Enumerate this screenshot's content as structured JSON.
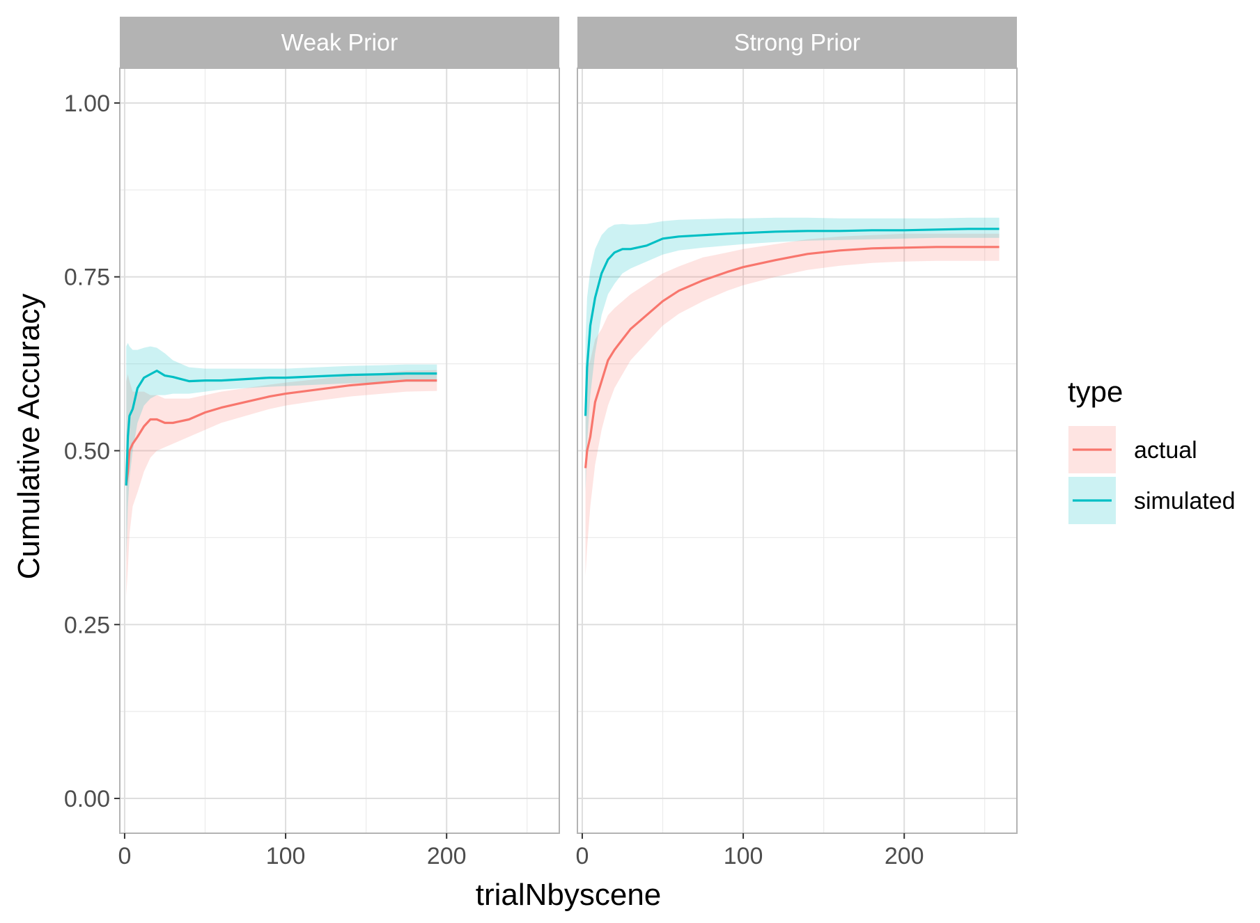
{
  "chart_data": {
    "type": "line",
    "xlabel": "trialNbyscene",
    "ylabel": "Cumulative Accuracy",
    "xlim": [
      -3,
      270
    ],
    "ylim": [
      -0.05,
      1.05
    ],
    "x_ticks": [
      0,
      100,
      200
    ],
    "x_tick_labels": [
      "0",
      "100",
      "200"
    ],
    "x_minor_ticks": [
      50,
      150,
      250
    ],
    "y_ticks": [
      0,
      0.25,
      0.5,
      0.75,
      1.0
    ],
    "y_tick_labels": [
      "0.00",
      "0.25",
      "0.50",
      "0.75",
      "1.00"
    ],
    "y_minor_ticks": [
      0.125,
      0.375,
      0.625,
      0.875
    ],
    "grid": true,
    "legend": {
      "title": "type",
      "position": "right",
      "entries": [
        {
          "label": "actual",
          "color": "#F8766D"
        },
        {
          "label": "simulated",
          "color": "#00BFC4"
        }
      ]
    },
    "colors": {
      "actual": "#F8766D",
      "simulated": "#00BFC4",
      "strip": "#b3b3b3",
      "strip_text": "#ffffff"
    },
    "facets": [
      {
        "title": "Weak Prior",
        "series": [
          {
            "name": "actual",
            "x": [
              1,
              2,
              3,
              5,
              8,
              12,
              16,
              20,
              25,
              30,
              40,
              50,
              60,
              75,
              90,
              100,
              120,
              140,
              160,
              175,
              194
            ],
            "y": [
              0.45,
              0.47,
              0.5,
              0.51,
              0.52,
              0.535,
              0.545,
              0.545,
              0.54,
              0.54,
              0.545,
              0.555,
              0.562,
              0.57,
              0.578,
              0.582,
              0.588,
              0.594,
              0.598,
              0.601,
              0.601
            ],
            "lower": [
              0.29,
              0.33,
              0.38,
              0.42,
              0.44,
              0.47,
              0.49,
              0.5,
              0.505,
              0.51,
              0.52,
              0.53,
              0.54,
              0.55,
              0.56,
              0.565,
              0.572,
              0.578,
              0.582,
              0.585,
              0.586
            ],
            "upper": [
              0.6,
              0.61,
              0.6,
              0.585,
              0.585,
              0.585,
              0.58,
              0.58,
              0.575,
              0.575,
              0.575,
              0.58,
              0.585,
              0.59,
              0.595,
              0.598,
              0.603,
              0.608,
              0.612,
              0.615,
              0.616
            ]
          },
          {
            "name": "simulated",
            "x": [
              1,
              2,
              3,
              5,
              8,
              12,
              16,
              20,
              25,
              30,
              40,
              50,
              60,
              75,
              90,
              100,
              120,
              140,
              160,
              175,
              194
            ],
            "y": [
              0.45,
              0.52,
              0.55,
              0.56,
              0.59,
              0.605,
              0.61,
              0.615,
              0.608,
              0.606,
              0.6,
              0.601,
              0.601,
              0.603,
              0.605,
              0.605,
              0.607,
              0.609,
              0.61,
              0.611,
              0.611
            ],
            "lower": [
              0.34,
              0.42,
              0.46,
              0.5,
              0.54,
              0.565,
              0.575,
              0.58,
              0.58,
              0.582,
              0.582,
              0.585,
              0.588,
              0.59,
              0.592,
              0.593,
              0.595,
              0.597,
              0.598,
              0.599,
              0.599
            ],
            "upper": [
              0.65,
              0.655,
              0.65,
              0.645,
              0.645,
              0.648,
              0.65,
              0.648,
              0.64,
              0.63,
              0.62,
              0.618,
              0.618,
              0.618,
              0.618,
              0.618,
              0.62,
              0.622,
              0.623,
              0.624,
              0.624
            ]
          }
        ]
      },
      {
        "title": "Strong Prior",
        "series": [
          {
            "name": "actual",
            "x": [
              2,
              3,
              5,
              8,
              12,
              16,
              20,
              25,
              30,
              40,
              50,
              60,
              75,
              90,
              100,
              120,
              140,
              160,
              180,
              200,
              220,
              240,
              259
            ],
            "y": [
              0.475,
              0.5,
              0.52,
              0.57,
              0.6,
              0.63,
              0.645,
              0.66,
              0.675,
              0.695,
              0.715,
              0.73,
              0.745,
              0.757,
              0.764,
              0.774,
              0.783,
              0.788,
              0.791,
              0.792,
              0.793,
              0.793,
              0.793
            ],
            "lower": [
              0.32,
              0.36,
              0.42,
              0.48,
              0.53,
              0.565,
              0.59,
              0.61,
              0.63,
              0.655,
              0.68,
              0.697,
              0.715,
              0.73,
              0.738,
              0.75,
              0.76,
              0.766,
              0.77,
              0.772,
              0.773,
              0.773,
              0.773
            ],
            "upper": [
              0.6,
              0.62,
              0.63,
              0.66,
              0.675,
              0.695,
              0.705,
              0.715,
              0.725,
              0.74,
              0.755,
              0.765,
              0.778,
              0.785,
              0.79,
              0.797,
              0.804,
              0.808,
              0.81,
              0.812,
              0.812,
              0.812,
              0.812
            ]
          },
          {
            "name": "simulated",
            "x": [
              2,
              3,
              5,
              8,
              12,
              16,
              20,
              25,
              30,
              40,
              50,
              60,
              75,
              90,
              100,
              120,
              140,
              160,
              180,
              200,
              220,
              240,
              259
            ],
            "y": [
              0.55,
              0.62,
              0.68,
              0.72,
              0.755,
              0.775,
              0.785,
              0.79,
              0.79,
              0.795,
              0.805,
              0.808,
              0.81,
              0.812,
              0.813,
              0.815,
              0.816,
              0.816,
              0.817,
              0.817,
              0.818,
              0.819,
              0.819
            ],
            "lower": [
              0.44,
              0.51,
              0.58,
              0.64,
              0.695,
              0.725,
              0.74,
              0.755,
              0.762,
              0.772,
              0.782,
              0.788,
              0.792,
              0.795,
              0.797,
              0.8,
              0.802,
              0.803,
              0.804,
              0.805,
              0.806,
              0.806,
              0.806
            ],
            "upper": [
              0.66,
              0.72,
              0.76,
              0.79,
              0.81,
              0.82,
              0.825,
              0.826,
              0.825,
              0.826,
              0.83,
              0.832,
              0.833,
              0.834,
              0.834,
              0.835,
              0.835,
              0.834,
              0.834,
              0.834,
              0.834,
              0.835,
              0.835
            ]
          }
        ]
      }
    ]
  }
}
